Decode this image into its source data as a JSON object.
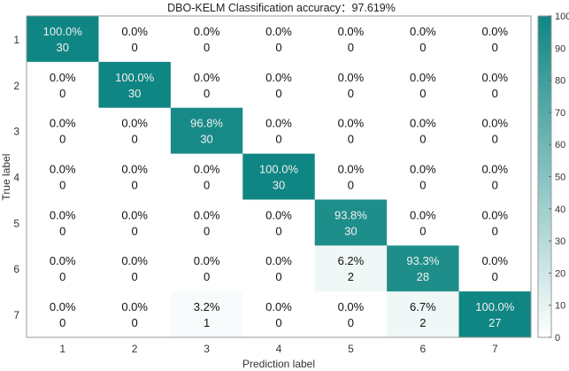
{
  "chart_data": {
    "type": "heatmap",
    "title": "DBO-KELM Classification accuracy：97.619%",
    "xlabel": "Prediction label",
    "ylabel": "True label",
    "categories": [
      "1",
      "2",
      "3",
      "4",
      "5",
      "6",
      "7"
    ],
    "counts": [
      [
        30,
        0,
        0,
        0,
        0,
        0,
        0
      ],
      [
        0,
        30,
        0,
        0,
        0,
        0,
        0
      ],
      [
        0,
        0,
        30,
        0,
        0,
        0,
        0
      ],
      [
        0,
        0,
        0,
        30,
        0,
        0,
        0
      ],
      [
        0,
        0,
        0,
        0,
        30,
        0,
        0
      ],
      [
        0,
        0,
        0,
        0,
        2,
        28,
        0
      ],
      [
        0,
        0,
        1,
        0,
        0,
        2,
        27
      ]
    ],
    "percents": [
      [
        "100.0%",
        "0.0%",
        "0.0%",
        "0.0%",
        "0.0%",
        "0.0%",
        "0.0%"
      ],
      [
        "0.0%",
        "100.0%",
        "0.0%",
        "0.0%",
        "0.0%",
        "0.0%",
        "0.0%"
      ],
      [
        "0.0%",
        "0.0%",
        "96.8%",
        "0.0%",
        "0.0%",
        "0.0%",
        "0.0%"
      ],
      [
        "0.0%",
        "0.0%",
        "0.0%",
        "100.0%",
        "0.0%",
        "0.0%",
        "0.0%"
      ],
      [
        "0.0%",
        "0.0%",
        "0.0%",
        "0.0%",
        "93.8%",
        "0.0%",
        "0.0%"
      ],
      [
        "0.0%",
        "0.0%",
        "0.0%",
        "0.0%",
        "6.2%",
        "93.3%",
        "0.0%"
      ],
      [
        "0.0%",
        "0.0%",
        "3.2%",
        "0.0%",
        "0.0%",
        "6.7%",
        "100.0%"
      ]
    ],
    "colorbar": {
      "range": [
        0,
        100
      ],
      "ticks": [
        "0",
        "10",
        "20",
        "30",
        "40",
        "50",
        "60",
        "70",
        "80",
        "90",
        "100"
      ]
    },
    "colors": {
      "low": "#ffffff",
      "high": "#0f8683"
    }
  }
}
